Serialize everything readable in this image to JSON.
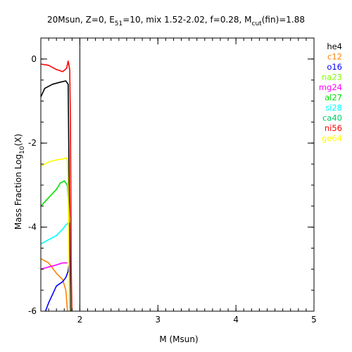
{
  "chart_data": {
    "type": "line",
    "title": "20Msun, Z=0, E51=10, mix 1.52-2.02, f=0.28, Mcut(fin)=1.88",
    "title_parts": {
      "p1": "20Msun, Z=0, E",
      "p1_sub": "51",
      "p2": "=10, mix 1.52-2.02, f=0.28, M",
      "p2_sub": "cut",
      "p3": "(fin)=1.88"
    },
    "xlabel": "M (Msun)",
    "ylabel": "Mass Fraction Log10(X)",
    "ylabel_parts": {
      "main": "Mass Fraction Log",
      "sub": "10",
      "tail": "(X)"
    },
    "xlim": [
      1.5,
      5.0
    ],
    "ylim": [
      -6.0,
      0.5
    ],
    "x_ticks": [
      {
        "value": 2,
        "label": "2"
      },
      {
        "value": 3,
        "label": "3"
      },
      {
        "value": 4,
        "label": "4"
      },
      {
        "value": 5,
        "label": "5"
      }
    ],
    "y_ticks": [
      {
        "value": 0,
        "label": "0"
      },
      {
        "value": -2,
        "label": "-2"
      },
      {
        "value": -4,
        "label": "-4"
      },
      {
        "value": -6,
        "label": "-6"
      }
    ],
    "x_minor_step": 0.1,
    "y_minor_step": 0.5,
    "vline": 2.0,
    "series": [
      {
        "name": "he4",
        "color": "#000000",
        "points": [
          [
            1.5,
            -0.9
          ],
          [
            1.55,
            -0.7
          ],
          [
            1.65,
            -0.6
          ],
          [
            1.75,
            -0.55
          ],
          [
            1.82,
            -0.52
          ],
          [
            1.85,
            -0.6
          ],
          [
            1.88,
            -6.2
          ]
        ]
      },
      {
        "name": "c12",
        "color": "#ff8000",
        "points": [
          [
            1.5,
            -4.75
          ],
          [
            1.6,
            -4.85
          ],
          [
            1.7,
            -5.1
          ],
          [
            1.78,
            -5.25
          ],
          [
            1.82,
            -5.5
          ],
          [
            1.85,
            -6.2
          ]
        ]
      },
      {
        "name": "o16",
        "color": "#0000ff",
        "points": [
          [
            1.5,
            -6.3
          ],
          [
            1.6,
            -5.8
          ],
          [
            1.7,
            -5.4
          ],
          [
            1.78,
            -5.3
          ],
          [
            1.82,
            -5.2
          ],
          [
            1.85,
            -5.05
          ],
          [
            1.86,
            -4.9
          ]
        ]
      },
      {
        "name": "na23",
        "color": "#80ff00",
        "points": [
          [
            1.5,
            -6.3
          ],
          [
            1.6,
            -6.15
          ],
          [
            1.65,
            -6.1
          ]
        ]
      },
      {
        "name": "mg24",
        "color": "#ff00ff",
        "points": [
          [
            1.5,
            -5.0
          ],
          [
            1.6,
            -4.95
          ],
          [
            1.7,
            -4.9
          ],
          [
            1.78,
            -4.85
          ],
          [
            1.82,
            -4.85
          ],
          [
            1.84,
            -4.85
          ]
        ]
      },
      {
        "name": "al27",
        "color": "#00e000",
        "points": [
          [
            1.5,
            -3.5
          ],
          [
            1.55,
            -3.4
          ],
          [
            1.6,
            -3.3
          ],
          [
            1.65,
            -3.2
          ],
          [
            1.7,
            -3.1
          ],
          [
            1.75,
            -2.95
          ],
          [
            1.8,
            -2.9
          ],
          [
            1.84,
            -3.0
          ],
          [
            1.87,
            -3.9
          ]
        ]
      },
      {
        "name": "si28",
        "color": "#00ffff",
        "points": [
          [
            1.5,
            -4.4
          ],
          [
            1.6,
            -4.3
          ],
          [
            1.7,
            -4.2
          ],
          [
            1.78,
            -4.05
          ],
          [
            1.82,
            -3.95
          ],
          [
            1.85,
            -3.9
          ]
        ]
      },
      {
        "name": "ca40",
        "color": "#00cc66",
        "points": [
          [
            1.5,
            -6.3
          ],
          [
            1.55,
            -6.2
          ]
        ]
      },
      {
        "name": "ni56",
        "color": "#ff0000",
        "points": [
          [
            1.5,
            -0.12
          ],
          [
            1.6,
            -0.15
          ],
          [
            1.7,
            -0.25
          ],
          [
            1.78,
            -0.3
          ],
          [
            1.83,
            -0.22
          ],
          [
            1.85,
            -0.05
          ],
          [
            1.87,
            -0.25
          ],
          [
            1.88,
            -1.5
          ],
          [
            1.89,
            -5.0
          ],
          [
            1.9,
            -6.2
          ]
        ]
      },
      {
        "name": "ge64",
        "color": "#ffff00",
        "points": [
          [
            1.5,
            -2.55
          ],
          [
            1.6,
            -2.45
          ],
          [
            1.7,
            -2.4
          ],
          [
            1.78,
            -2.38
          ],
          [
            1.82,
            -2.35
          ],
          [
            1.84,
            -2.4
          ],
          [
            1.85,
            -3.0
          ],
          [
            1.86,
            -4.5
          ],
          [
            1.87,
            -6.2
          ]
        ]
      }
    ]
  }
}
